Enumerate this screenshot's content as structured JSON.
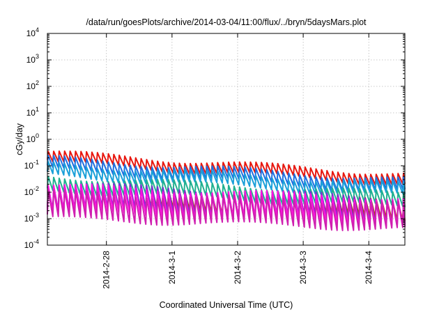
{
  "chart_data": {
    "type": "line",
    "title": "/data/run/goesPlots/archive/2014-03-04/11:00/flux/../bryn/5daysMars.plot",
    "xlabel": "Coordinated Universal Time (UTC)",
    "ylabel": "cGy/day",
    "yscale": "log",
    "ylim": [
      0.0001,
      10000
    ],
    "xlim_days_from_2014_02_27": [
      0.1,
      5.55
    ],
    "y_ticks": [
      {
        "base": "10",
        "exp": "-4"
      },
      {
        "base": "10",
        "exp": "-3"
      },
      {
        "base": "10",
        "exp": "-2"
      },
      {
        "base": "10",
        "exp": "-1"
      },
      {
        "base": "10",
        "exp": "0"
      },
      {
        "base": "10",
        "exp": "1"
      },
      {
        "base": "10",
        "exp": "2"
      },
      {
        "base": "10",
        "exp": "3"
      },
      {
        "base": "10",
        "exp": "4"
      }
    ],
    "x_ticks": [
      {
        "label": "2014-2-28",
        "day": 1
      },
      {
        "label": "2014-3-1",
        "day": 2
      },
      {
        "label": "2014-3-2",
        "day": 3
      },
      {
        "label": "2014-3-3",
        "day": 4
      },
      {
        "label": "2014-3-4",
        "day": 5
      }
    ],
    "grid": true,
    "pattern": "sawtooth",
    "cycles_per_day": 12,
    "series": [
      {
        "color": "#e8170f",
        "start_peak": 0.33,
        "end_peak": 0.05,
        "drop_factor": 0.4
      },
      {
        "color": "#1f6fe0",
        "start_peak": 0.2,
        "end_peak": 0.03,
        "drop_factor": 0.35
      },
      {
        "color": "#1aa0d8",
        "start_peak": 0.12,
        "end_peak": 0.02,
        "drop_factor": 0.35
      },
      {
        "color": "#20b090",
        "start_peak": 0.04,
        "end_peak": 0.009,
        "drop_factor": 0.3
      },
      {
        "color": "#b04010",
        "start_peak": 0.015,
        "end_peak": 0.005,
        "drop_factor": 0.2
      },
      {
        "color": "#7b2fd0",
        "start_peak": 0.022,
        "end_peak": 0.006,
        "drop_factor": 0.12
      },
      {
        "color": "#ff10e0",
        "start_peak": 0.018,
        "end_peak": 0.006,
        "drop_factor": 0.1
      },
      {
        "color": "#d020b0",
        "start_peak": 0.01,
        "end_peak": 0.004,
        "drop_factor": 0.1
      }
    ]
  }
}
